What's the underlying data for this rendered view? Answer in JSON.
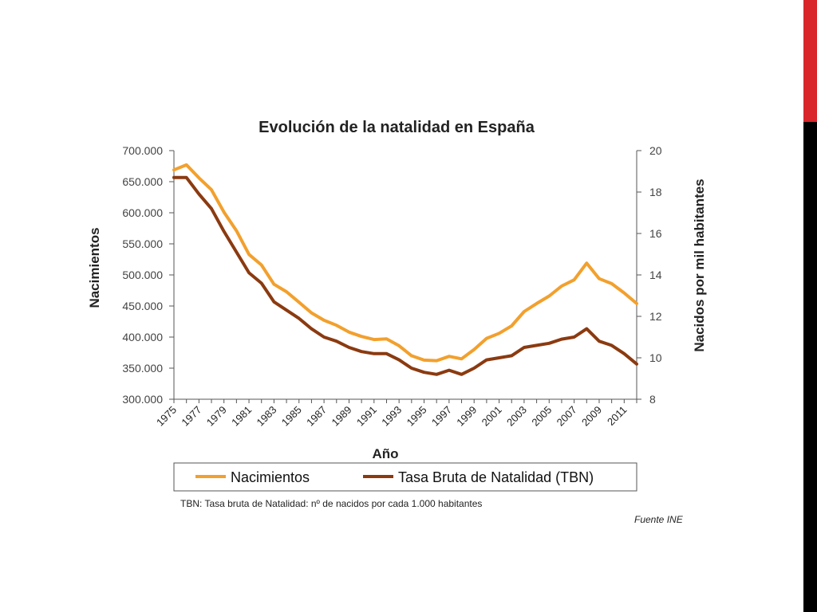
{
  "colors": {
    "edge_top": "#d9262b",
    "edge_bottom": "#000000",
    "births_line": "#f2a02d",
    "rate_line": "#8b3a10",
    "axis": "#555555"
  },
  "chart_data": {
    "type": "line",
    "title": "Evolución de la natalidad en España",
    "xlabel": "Año",
    "ylabel": "Nacimientos",
    "y2label": "Nacidos por mil habitantes",
    "x": [
      1975,
      1976,
      1977,
      1978,
      1979,
      1980,
      1981,
      1982,
      1983,
      1984,
      1985,
      1986,
      1987,
      1988,
      1989,
      1990,
      1991,
      1992,
      1993,
      1994,
      1995,
      1996,
      1997,
      1998,
      1999,
      2000,
      2001,
      2002,
      2003,
      2004,
      2005,
      2006,
      2007,
      2008,
      2009,
      2010,
      2011,
      2012
    ],
    "x_tick_labels": [
      "1975",
      "1977",
      "1979",
      "1981",
      "1983",
      "1985",
      "1987",
      "1989",
      "1991",
      "1993",
      "1995",
      "1997",
      "1999",
      "2001",
      "2003",
      "2005",
      "2007",
      "2009",
      "2011"
    ],
    "ylim": [
      300000,
      700000
    ],
    "y_tick_labels": [
      "300.000",
      "350.000",
      "400.000",
      "450.000",
      "500.000",
      "550.000",
      "600.000",
      "650.000",
      "700.000"
    ],
    "y2lim": [
      8,
      20
    ],
    "y2_tick_labels": [
      "8",
      "10",
      "12",
      "14",
      "16",
      "18",
      "20"
    ],
    "grid": false,
    "legend_position": "bottom",
    "series": [
      {
        "name": "Nacimientos",
        "axis": "left",
        "values": [
          669000,
          677000,
          656000,
          637000,
          601000,
          571000,
          533000,
          516000,
          485000,
          473000,
          456000,
          439000,
          427000,
          419000,
          408000,
          401000,
          396000,
          397000,
          386000,
          370000,
          363000,
          362000,
          369000,
          365000,
          380000,
          398000,
          406000,
          418000,
          441000,
          454000,
          466000,
          482000,
          492000,
          519000,
          494000,
          486000,
          471000,
          454000
        ]
      },
      {
        "name": "Tasa Bruta de Natalidad (TBN)",
        "axis": "right",
        "values": [
          18.7,
          18.7,
          17.9,
          17.2,
          16.1,
          15.1,
          14.1,
          13.6,
          12.7,
          12.3,
          11.9,
          11.4,
          11.0,
          10.8,
          10.5,
          10.3,
          10.2,
          10.2,
          9.9,
          9.5,
          9.3,
          9.2,
          9.4,
          9.2,
          9.5,
          9.9,
          10.0,
          10.1,
          10.5,
          10.6,
          10.7,
          10.9,
          11.0,
          11.4,
          10.8,
          10.6,
          10.2,
          9.7
        ]
      }
    ],
    "footnote": "TBN: Tasa bruta de Natalidad: nº de nacidos por cada 1.000 habitantes",
    "source": "Fuente INE"
  }
}
